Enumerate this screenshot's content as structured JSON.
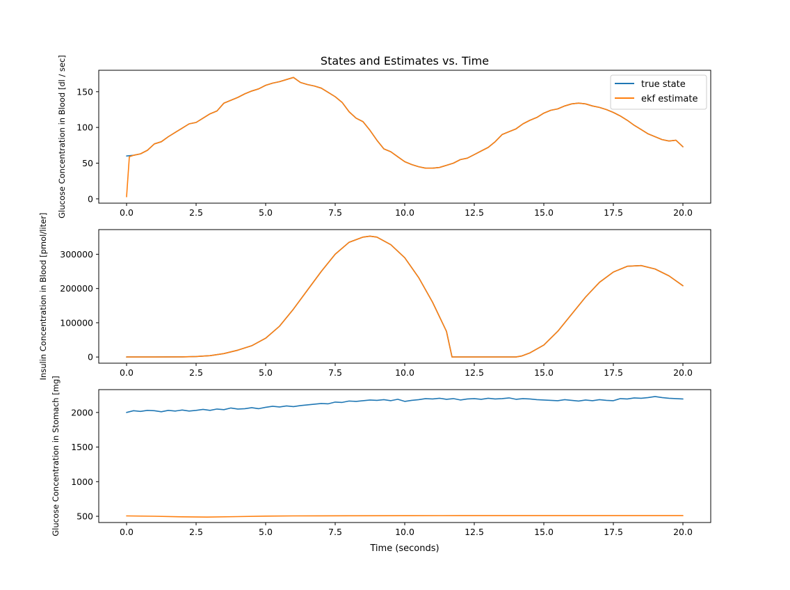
{
  "figure": {
    "title": "States and Estimates vs. Time",
    "xlabel": "Time (seconds)"
  },
  "colors": {
    "true_state": "#1f77b4",
    "ekf_estimate": "#ff7f0e"
  },
  "chart_data": [
    {
      "type": "line",
      "title": "States and Estimates vs. Time",
      "xlabel": "",
      "ylabel": "Glucose Concentration in Blood [dl / sec]",
      "xlim": [
        -1.0,
        21.0
      ],
      "ylim": [
        -6,
        180
      ],
      "xticks": [
        0.0,
        2.5,
        5.0,
        7.5,
        10.0,
        12.5,
        15.0,
        17.5,
        20.0
      ],
      "xtick_labels": [
        "0.0",
        "2.5",
        "5.0",
        "7.5",
        "10.0",
        "12.5",
        "15.0",
        "17.5",
        "20.0"
      ],
      "yticks": [
        0,
        50,
        100,
        150
      ],
      "ytick_labels": [
        "0",
        "50",
        "100",
        "150"
      ],
      "legend": {
        "location": "upper-right",
        "entries": [
          "true state",
          "ekf estimate"
        ]
      },
      "series": [
        {
          "name": "true state",
          "color": "#1f77b4",
          "x": [
            0,
            0.25,
            0.5,
            0.75,
            1.0,
            1.25,
            1.5,
            1.75,
            2.0,
            2.25,
            2.5,
            2.75,
            3.0,
            3.25,
            3.5,
            3.75,
            4.0,
            4.25,
            4.5,
            4.75,
            5.0,
            5.25,
            5.5,
            5.75,
            6.0,
            6.25,
            6.5,
            6.75,
            7.0,
            7.25,
            7.5,
            7.75,
            8.0,
            8.25,
            8.5,
            8.75,
            9.0,
            9.25,
            9.5,
            9.75,
            10.0,
            10.25,
            10.5,
            10.75,
            11.0,
            11.25,
            11.5,
            11.75,
            12.0,
            12.25,
            12.5,
            12.75,
            13.0,
            13.25,
            13.5,
            13.75,
            14.0,
            14.25,
            14.5,
            14.75,
            15.0,
            15.25,
            15.5,
            15.75,
            16.0,
            16.25,
            16.5,
            16.75,
            17.0,
            17.25,
            17.5,
            17.75,
            18.0,
            18.25,
            18.5,
            18.75,
            19.0,
            19.25,
            19.5,
            19.75,
            20.0
          ],
          "y": [
            60,
            61,
            63,
            68,
            77,
            80,
            87,
            93,
            99,
            105,
            107,
            113,
            119,
            123,
            134,
            138,
            142,
            147,
            151,
            154,
            159,
            162,
            164,
            167,
            170,
            163,
            160,
            158,
            155,
            149,
            143,
            135,
            122,
            113,
            108,
            96,
            82,
            70,
            66,
            59,
            52,
            48,
            45,
            43,
            43,
            44,
            47,
            50,
            55,
            57,
            62,
            67,
            72,
            80,
            90,
            94,
            98,
            105,
            110,
            114,
            120,
            124,
            126,
            130,
            133,
            134,
            133,
            130,
            128,
            125,
            121,
            116,
            110,
            103,
            97,
            91,
            87,
            83,
            81,
            82,
            73
          ]
        },
        {
          "name": "ekf estimate",
          "color": "#ff7f0e",
          "x": [
            0,
            0.1,
            0.25,
            0.5,
            0.75,
            1.0,
            1.25,
            1.5,
            1.75,
            2.0,
            2.25,
            2.5,
            2.75,
            3.0,
            3.25,
            3.5,
            3.75,
            4.0,
            4.25,
            4.5,
            4.75,
            5.0,
            5.25,
            5.5,
            5.75,
            6.0,
            6.25,
            6.5,
            6.75,
            7.0,
            7.25,
            7.5,
            7.75,
            8.0,
            8.25,
            8.5,
            8.75,
            9.0,
            9.25,
            9.5,
            9.75,
            10.0,
            10.25,
            10.5,
            10.75,
            11.0,
            11.25,
            11.5,
            11.75,
            12.0,
            12.25,
            12.5,
            12.75,
            13.0,
            13.25,
            13.5,
            13.75,
            14.0,
            14.25,
            14.5,
            14.75,
            15.0,
            15.25,
            15.5,
            15.75,
            16.0,
            16.25,
            16.5,
            16.75,
            17.0,
            17.25,
            17.5,
            17.75,
            18.0,
            18.25,
            18.5,
            18.75,
            19.0,
            19.25,
            19.5,
            19.75,
            20.0
          ],
          "y": [
            3,
            59,
            61,
            63,
            68,
            77,
            80,
            87,
            93,
            99,
            105,
            107,
            113,
            119,
            123,
            134,
            138,
            142,
            147,
            151,
            154,
            159,
            162,
            164,
            167,
            170,
            163,
            160,
            158,
            155,
            149,
            143,
            135,
            122,
            113,
            108,
            96,
            82,
            70,
            66,
            59,
            52,
            48,
            45,
            43,
            43,
            44,
            47,
            50,
            55,
            57,
            62,
            67,
            72,
            80,
            90,
            94,
            98,
            105,
            110,
            114,
            120,
            124,
            126,
            130,
            133,
            134,
            133,
            130,
            128,
            125,
            121,
            116,
            110,
            103,
            97,
            91,
            87,
            83,
            81,
            82,
            73
          ]
        }
      ]
    },
    {
      "type": "line",
      "title": "",
      "xlabel": "",
      "ylabel": "Insulin Concentration in Blood [pmol/liter]",
      "xlim": [
        -1.0,
        21.0
      ],
      "ylim": [
        -18000,
        372000
      ],
      "xticks": [
        0.0,
        2.5,
        5.0,
        7.5,
        10.0,
        12.5,
        15.0,
        17.5,
        20.0
      ],
      "xtick_labels": [
        "0.0",
        "2.5",
        "5.0",
        "7.5",
        "10.0",
        "12.5",
        "15.0",
        "17.5",
        "20.0"
      ],
      "yticks": [
        0,
        100000,
        200000,
        300000
      ],
      "ytick_labels": [
        "0",
        "100000",
        "200000",
        "300000"
      ],
      "series": [
        {
          "name": "true state",
          "color": "#1f77b4",
          "x": [
            0,
            1.0,
            2.0,
            2.5,
            3.0,
            3.5,
            4.0,
            4.5,
            5.0,
            5.5,
            6.0,
            6.5,
            7.0,
            7.5,
            8.0,
            8.5,
            8.75,
            9.0,
            9.5,
            10.0,
            10.5,
            11.0,
            11.5,
            11.7,
            12.0,
            13.0,
            14.0,
            14.2,
            14.5,
            15.0,
            15.5,
            16.0,
            16.5,
            17.0,
            17.5,
            18.0,
            18.5,
            19.0,
            19.5,
            20.0
          ],
          "y": [
            0,
            0,
            500,
            1500,
            4000,
            10000,
            20000,
            33000,
            55000,
            90000,
            140000,
            195000,
            250000,
            300000,
            335000,
            350000,
            353000,
            350000,
            328000,
            290000,
            232000,
            160000,
            75000,
            0,
            0,
            0,
            0,
            3000,
            12000,
            35000,
            75000,
            125000,
            175000,
            218000,
            248000,
            265000,
            267000,
            257000,
            237000,
            208000
          ]
        },
        {
          "name": "ekf estimate",
          "color": "#ff7f0e",
          "x": [
            0,
            1.0,
            2.0,
            2.5,
            3.0,
            3.5,
            4.0,
            4.5,
            5.0,
            5.5,
            6.0,
            6.5,
            7.0,
            7.5,
            8.0,
            8.5,
            8.75,
            9.0,
            9.5,
            10.0,
            10.5,
            11.0,
            11.5,
            11.7,
            12.0,
            13.0,
            14.0,
            14.2,
            14.5,
            15.0,
            15.5,
            16.0,
            16.5,
            17.0,
            17.5,
            18.0,
            18.5,
            19.0,
            19.5,
            20.0
          ],
          "y": [
            0,
            0,
            500,
            1500,
            4000,
            10000,
            20000,
            33000,
            55000,
            90000,
            140000,
            195000,
            250000,
            300000,
            335000,
            350000,
            353000,
            350000,
            328000,
            290000,
            232000,
            160000,
            75000,
            0,
            0,
            0,
            0,
            3000,
            12000,
            35000,
            75000,
            125000,
            175000,
            218000,
            248000,
            265000,
            267000,
            257000,
            237000,
            208000
          ]
        }
      ]
    },
    {
      "type": "line",
      "title": "",
      "xlabel": "Time (seconds)",
      "ylabel": "Glucose Concentration in Stomach [mg]",
      "xlim": [
        -1.0,
        21.0
      ],
      "ylim": [
        410,
        2330
      ],
      "xticks": [
        0.0,
        2.5,
        5.0,
        7.5,
        10.0,
        12.5,
        15.0,
        17.5,
        20.0
      ],
      "xtick_labels": [
        "0.0",
        "2.5",
        "5.0",
        "7.5",
        "10.0",
        "12.5",
        "15.0",
        "17.5",
        "20.0"
      ],
      "yticks": [
        500,
        1000,
        1500,
        2000
      ],
      "ytick_labels": [
        "500",
        "1000",
        "1500",
        "2000"
      ],
      "series": [
        {
          "name": "true state",
          "color": "#1f77b4",
          "x": [
            0,
            0.25,
            0.5,
            0.75,
            1.0,
            1.25,
            1.5,
            1.75,
            2.0,
            2.25,
            2.5,
            2.75,
            3.0,
            3.25,
            3.5,
            3.75,
            4.0,
            4.25,
            4.5,
            4.75,
            5.0,
            5.25,
            5.5,
            5.75,
            6.0,
            6.25,
            6.5,
            6.75,
            7.0,
            7.25,
            7.5,
            7.75,
            8.0,
            8.25,
            8.5,
            8.75,
            9.0,
            9.25,
            9.5,
            9.75,
            10.0,
            10.25,
            10.5,
            10.75,
            11.0,
            11.25,
            11.5,
            11.75,
            12.0,
            12.25,
            12.5,
            12.75,
            13.0,
            13.25,
            13.5,
            13.75,
            14.0,
            14.25,
            14.5,
            14.75,
            15.0,
            15.25,
            15.5,
            15.75,
            16.0,
            16.25,
            16.5,
            16.75,
            17.0,
            17.25,
            17.5,
            17.75,
            18.0,
            18.25,
            18.5,
            18.75,
            19.0,
            19.25,
            19.5,
            19.75,
            20.0
          ],
          "y": [
            2000,
            2025,
            2015,
            2030,
            2025,
            2010,
            2030,
            2020,
            2035,
            2020,
            2030,
            2045,
            2030,
            2050,
            2040,
            2065,
            2050,
            2055,
            2070,
            2055,
            2075,
            2090,
            2080,
            2095,
            2085,
            2100,
            2110,
            2120,
            2130,
            2125,
            2150,
            2145,
            2165,
            2160,
            2170,
            2180,
            2175,
            2185,
            2170,
            2190,
            2160,
            2175,
            2185,
            2200,
            2195,
            2205,
            2190,
            2200,
            2180,
            2195,
            2200,
            2190,
            2205,
            2195,
            2200,
            2210,
            2190,
            2200,
            2195,
            2185,
            2180,
            2175,
            2170,
            2185,
            2175,
            2165,
            2180,
            2170,
            2185,
            2175,
            2170,
            2200,
            2195,
            2210,
            2205,
            2215,
            2230,
            2215,
            2205,
            2200,
            2195
          ]
        },
        {
          "name": "ekf estimate",
          "color": "#ff7f0e",
          "x": [
            0,
            1.0,
            2.0,
            2.9,
            4.0,
            5.0,
            6.0,
            7.0,
            8.0,
            10.0,
            12.0,
            14.0,
            16.0,
            18.0,
            20.0
          ],
          "y": [
            505,
            500,
            492,
            488,
            495,
            502,
            505,
            507,
            508,
            509,
            510,
            510,
            510,
            510,
            510
          ]
        }
      ]
    }
  ]
}
